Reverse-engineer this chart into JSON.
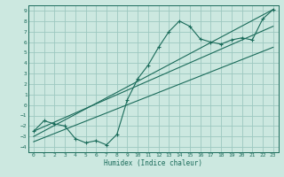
{
  "xlabel": "Humidex (Indice chaleur)",
  "bg_color": "#cce8e0",
  "grid_color": "#9dc8c0",
  "line_color": "#1a6b5a",
  "xlim": [
    -0.5,
    23.5
  ],
  "ylim": [
    -4.5,
    9.5
  ],
  "xticks": [
    0,
    1,
    2,
    3,
    4,
    5,
    6,
    7,
    8,
    9,
    10,
    11,
    12,
    13,
    14,
    15,
    16,
    17,
    18,
    19,
    20,
    21,
    22,
    23
  ],
  "yticks": [
    -4,
    -3,
    -2,
    -1,
    0,
    1,
    2,
    3,
    4,
    5,
    6,
    7,
    8,
    9
  ],
  "data_x": [
    0,
    1,
    2,
    3,
    4,
    5,
    6,
    7,
    8,
    9,
    10,
    11,
    12,
    13,
    14,
    15,
    16,
    17,
    18,
    19,
    20,
    21,
    22,
    23
  ],
  "data_y": [
    -2.5,
    -1.5,
    -1.8,
    -2.0,
    -3.2,
    -3.6,
    -3.4,
    -3.8,
    -2.8,
    0.5,
    2.5,
    3.8,
    5.5,
    7.0,
    8.0,
    7.5,
    6.3,
    6.0,
    5.8,
    6.2,
    6.4,
    6.2,
    8.2,
    9.1
  ],
  "line1_x": [
    0,
    23
  ],
  "line1_y": [
    -3.0,
    9.1
  ],
  "line2_x": [
    0,
    23
  ],
  "line2_y": [
    -2.5,
    7.5
  ],
  "line3_x": [
    0,
    23
  ],
  "line3_y": [
    -3.5,
    5.5
  ],
  "label_fontsize": 4.5,
  "xlabel_fontsize": 5.5
}
